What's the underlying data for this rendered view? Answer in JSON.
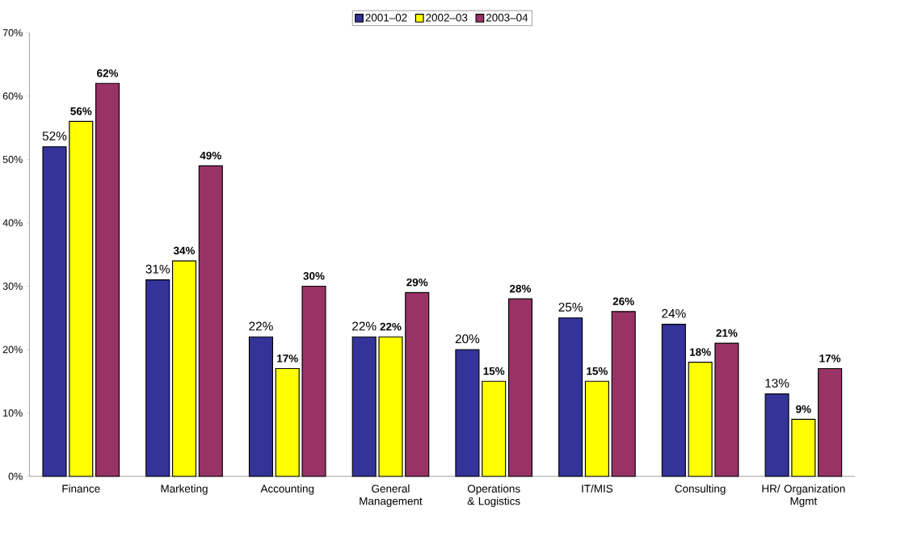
{
  "chart_data": {
    "type": "bar",
    "categories": [
      "Finance",
      "Marketing",
      "Accounting",
      "General Management",
      "Operations & Logistics",
      "IT/MIS",
      "Consulting",
      "HR/ Organization Mgmt"
    ],
    "series": [
      {
        "name": "2001–02",
        "color": "#333399",
        "values": [
          52,
          31,
          22,
          22,
          20,
          25,
          24,
          13
        ],
        "value_labels": [
          "52%",
          "31%",
          "22%",
          "22%",
          "20%",
          "25%",
          "24%",
          "13%"
        ]
      },
      {
        "name": "2002–03",
        "color": "#ffff00",
        "values": [
          56,
          34,
          17,
          22,
          15,
          15,
          18,
          9
        ],
        "value_labels": [
          "56%",
          "34%",
          "17%",
          "22%",
          "15%",
          "15%",
          "18%",
          "9%"
        ]
      },
      {
        "name": "2003–04",
        "color": "#993366",
        "values": [
          62,
          49,
          30,
          29,
          28,
          26,
          21,
          17
        ],
        "value_labels": [
          "62%",
          "49%",
          "30%",
          "29%",
          "28%",
          "26%",
          "21%",
          "17%"
        ]
      }
    ],
    "ylim": [
      0,
      70
    ],
    "yticks": [
      {
        "value": 0,
        "label": "0%"
      },
      {
        "value": 10,
        "label": "10%"
      },
      {
        "value": 20,
        "label": "20%"
      },
      {
        "value": 30,
        "label": "30%"
      },
      {
        "value": 40,
        "label": "40%"
      },
      {
        "value": 50,
        "label": "50%"
      },
      {
        "value": 60,
        "label": "60%"
      },
      {
        "value": 70,
        "label": "70%"
      }
    ],
    "grid": false,
    "legend": "top"
  }
}
